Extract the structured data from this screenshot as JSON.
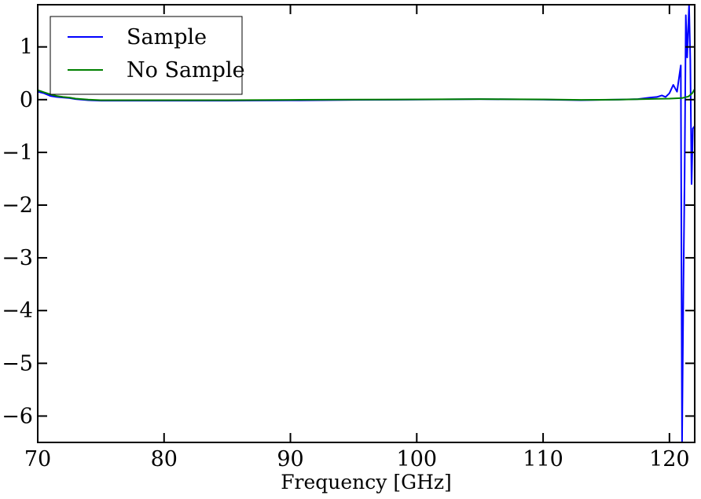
{
  "chart_data": {
    "type": "line",
    "title": "",
    "xlabel": "Frequency [GHz]",
    "ylabel": "",
    "xlim": [
      70,
      122
    ],
    "ylim": [
      -6.5,
      1.8
    ],
    "xticks": [
      70,
      80,
      90,
      100,
      110,
      120
    ],
    "yticks": [
      1,
      0,
      -1,
      -2,
      -3,
      -4,
      -5,
      -6
    ],
    "x_tick_labels": [
      "70",
      "80",
      "90",
      "100",
      "110",
      "120"
    ],
    "y_tick_labels": [
      "1",
      "0",
      "−1",
      "−2",
      "−3",
      "−4",
      "−5",
      "−6"
    ],
    "grid": false,
    "legend_position": "top-left",
    "series": [
      {
        "name": "Sample",
        "color": "#0000ff",
        "points": [
          [
            70.0,
            0.15
          ],
          [
            70.5,
            0.12
          ],
          [
            71.0,
            0.07
          ],
          [
            71.5,
            0.05
          ],
          [
            72.0,
            0.04
          ],
          [
            72.5,
            0.03
          ],
          [
            73.0,
            0.01
          ],
          [
            74.0,
            -0.01
          ],
          [
            75.0,
            -0.02
          ],
          [
            80.0,
            -0.02
          ],
          [
            85.0,
            -0.02
          ],
          [
            90.0,
            -0.015
          ],
          [
            95.0,
            -0.005
          ],
          [
            100.0,
            0.0
          ],
          [
            105.0,
            0.01
          ],
          [
            110.0,
            0.0
          ],
          [
            113.0,
            -0.01
          ],
          [
            116.0,
            0.0
          ],
          [
            117.5,
            0.01
          ],
          [
            118.5,
            0.04
          ],
          [
            119.0,
            0.05
          ],
          [
            119.4,
            0.08
          ],
          [
            119.7,
            0.05
          ],
          [
            120.0,
            0.12
          ],
          [
            120.3,
            0.28
          ],
          [
            120.6,
            0.15
          ],
          [
            120.9,
            0.65
          ],
          [
            121.0,
            -6.5
          ],
          [
            121.1,
            -3.7
          ],
          [
            121.2,
            -1.5
          ],
          [
            121.3,
            1.6
          ],
          [
            121.4,
            0.8
          ],
          [
            121.55,
            1.8
          ],
          [
            121.65,
            0.75
          ],
          [
            121.75,
            -1.6
          ],
          [
            121.85,
            -0.55
          ],
          [
            122.0,
            -0.5
          ]
        ]
      },
      {
        "name": "No Sample",
        "color": "#008000",
        "points": [
          [
            70.0,
            0.18
          ],
          [
            70.5,
            0.14
          ],
          [
            71.0,
            0.1
          ],
          [
            71.5,
            0.07
          ],
          [
            72.0,
            0.05
          ],
          [
            72.5,
            0.04
          ],
          [
            73.0,
            0.02
          ],
          [
            74.0,
            0.0
          ],
          [
            75.0,
            -0.01
          ],
          [
            80.0,
            -0.01
          ],
          [
            85.0,
            -0.01
          ],
          [
            90.0,
            -0.005
          ],
          [
            95.0,
            0.0
          ],
          [
            100.0,
            0.005
          ],
          [
            105.0,
            0.01
          ],
          [
            110.0,
            0.005
          ],
          [
            113.0,
            -0.005
          ],
          [
            116.0,
            0.0
          ],
          [
            118.0,
            0.01
          ],
          [
            119.0,
            0.015
          ],
          [
            120.0,
            0.02
          ],
          [
            120.5,
            0.025
          ],
          [
            121.0,
            0.03
          ],
          [
            121.5,
            0.06
          ],
          [
            121.8,
            0.12
          ],
          [
            122.0,
            0.2
          ]
        ]
      }
    ]
  }
}
